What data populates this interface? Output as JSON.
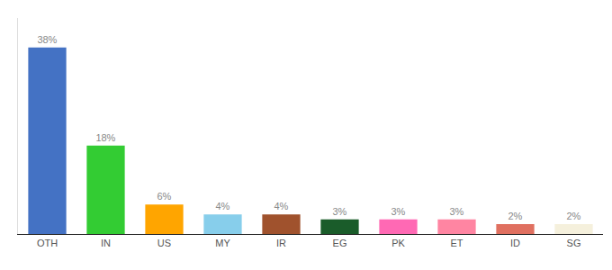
{
  "chart_data": {
    "type": "bar",
    "categories": [
      "OTH",
      "IN",
      "US",
      "MY",
      "IR",
      "EG",
      "PK",
      "ET",
      "ID",
      "SG"
    ],
    "values": [
      38,
      18,
      6,
      4,
      4,
      3,
      3,
      3,
      2,
      2
    ],
    "value_labels": [
      "38%",
      "18%",
      "6%",
      "4%",
      "4%",
      "3%",
      "3%",
      "3%",
      "2%",
      "2%"
    ],
    "colors": [
      "#4472C4",
      "#33CC33",
      "#FFA500",
      "#87CEEB",
      "#A0522D",
      "#1A5C2A",
      "#FF69B4",
      "#FF85A2",
      "#E07060",
      "#F5F0DC"
    ],
    "ylim": [
      0,
      44
    ],
    "grid": false,
    "data_labels": true,
    "tick_labels": "x"
  }
}
